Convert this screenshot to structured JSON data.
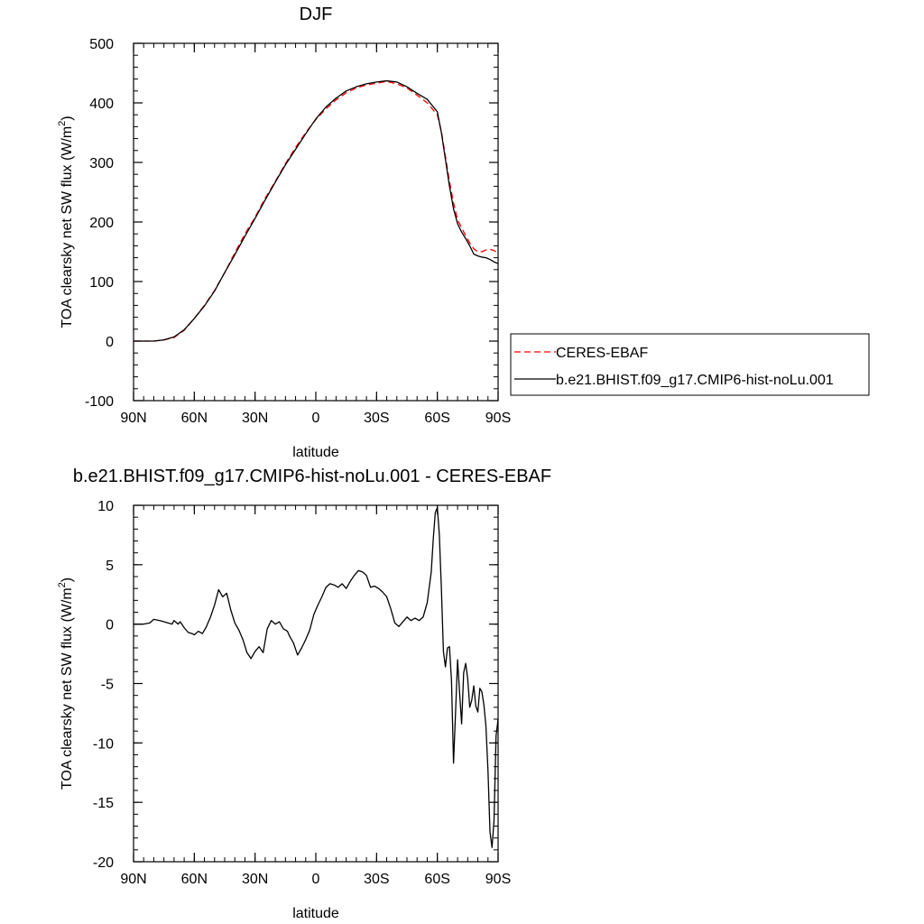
{
  "chart_data": [
    {
      "type": "line",
      "title": "DJF",
      "xlabel": "latitude",
      "ylabel": "TOA clearsky net SW flux (W/m²)",
      "ylabel_parts": [
        "TOA clearsky net SW flux (W/m",
        "2",
        ")"
      ],
      "xlim": [
        -90,
        90
      ],
      "ylim": [
        -100,
        500
      ],
      "x_ticks": [
        -90,
        -60,
        -30,
        0,
        30,
        60,
        90
      ],
      "x_tick_labels": [
        "90N",
        "60N",
        "30N",
        "0",
        "30S",
        "60S",
        "90S"
      ],
      "y_ticks": [
        -100,
        0,
        100,
        200,
        300,
        400,
        500
      ],
      "y_tick_labels": [
        "-100",
        "0",
        "100",
        "200",
        "300",
        "400",
        "500"
      ],
      "grid": false,
      "legend_position": "right",
      "series": [
        {
          "name": "CERES-EBAF",
          "color": "#ff0000",
          "dash": "dashed",
          "x": [
            -90,
            -85,
            -80,
            -75,
            -70,
            -65,
            -60,
            -55,
            -50,
            -45,
            -40,
            -35,
            -30,
            -25,
            -20,
            -15,
            -10,
            -5,
            0,
            5,
            10,
            15,
            20,
            25,
            30,
            35,
            40,
            45,
            50,
            55,
            60,
            62,
            64,
            66,
            68,
            70,
            72,
            74,
            76,
            78,
            80,
            82,
            84,
            86,
            88,
            90
          ],
          "y": [
            0,
            0,
            0,
            2,
            6,
            18,
            38,
            60,
            85,
            115,
            148,
            180,
            208,
            240,
            268,
            298,
            325,
            350,
            372,
            390,
            405,
            417,
            425,
            430,
            433,
            436,
            432,
            425,
            413,
            400,
            380,
            352,
            310,
            268,
            232,
            204,
            190,
            177,
            165,
            155,
            150,
            150,
            153,
            154,
            152,
            148
          ]
        },
        {
          "name": "b.e21.BHIST.f09_g17.CMIP6-hist-noLu.001",
          "color": "#000000",
          "dash": "solid",
          "x": [
            -90,
            -85,
            -80,
            -75,
            -70,
            -65,
            -60,
            -55,
            -50,
            -45,
            -40,
            -35,
            -30,
            -25,
            -20,
            -15,
            -10,
            -5,
            0,
            5,
            10,
            15,
            20,
            25,
            30,
            35,
            40,
            45,
            50,
            55,
            60,
            62,
            64,
            66,
            68,
            70,
            72,
            74,
            76,
            78,
            80,
            82,
            84,
            86,
            88,
            90
          ],
          "y": [
            0,
            0,
            0,
            2,
            7,
            19,
            38,
            59,
            84,
            115,
            145,
            176,
            206,
            237,
            267,
            296,
            322,
            348,
            373,
            393,
            408,
            420,
            427,
            432,
            435,
            437,
            435,
            427,
            416,
            406,
            385,
            350,
            305,
            260,
            222,
            197,
            183,
            172,
            160,
            146,
            143,
            141,
            140,
            137,
            133,
            130
          ]
        }
      ]
    },
    {
      "type": "line",
      "title": "b.e21.BHIST.f09_g17.CMIP6-hist-noLu.001 - CERES-EBAF",
      "xlabel": "latitude",
      "ylabel": "TOA clearsky net SW flux (W/m²)",
      "ylabel_parts": [
        "TOA clearsky net SW flux (W/m",
        "2",
        ")"
      ],
      "xlim": [
        -90,
        90
      ],
      "ylim": [
        -20,
        10
      ],
      "x_ticks": [
        -90,
        -60,
        -30,
        0,
        30,
        60,
        90
      ],
      "x_tick_labels": [
        "90N",
        "60N",
        "30N",
        "0",
        "30S",
        "60S",
        "90S"
      ],
      "y_ticks": [
        -20,
        -15,
        -10,
        -5,
        0,
        5,
        10
      ],
      "y_tick_labels": [
        "-20",
        "-15",
        "-10",
        "-5",
        "0",
        "5",
        "10"
      ],
      "grid": false,
      "series": [
        {
          "color": "#000000",
          "dash": "solid",
          "x": [
            -90,
            -85,
            -82,
            -80,
            -77,
            -75,
            -73,
            -71,
            -70,
            -68,
            -67,
            -65,
            -63,
            -61,
            -60,
            -58,
            -56,
            -54,
            -52,
            -50,
            -48,
            -46,
            -44,
            -42,
            -40,
            -38,
            -36,
            -34,
            -32,
            -30,
            -28,
            -26,
            -24,
            -22,
            -20,
            -18,
            -16,
            -14,
            -13,
            -11,
            -9,
            -7,
            -5,
            -3,
            -1,
            1,
            3,
            5,
            7,
            9,
            11,
            13,
            15,
            17,
            19,
            21,
            23,
            25,
            27,
            29,
            31,
            33,
            35,
            37,
            39,
            41,
            43,
            45,
            47,
            49,
            51,
            53,
            55,
            57,
            58,
            59,
            60,
            61,
            62,
            63,
            64,
            65,
            66,
            67,
            68,
            69,
            70,
            71,
            72,
            73,
            74,
            75,
            76,
            77,
            78,
            79,
            80,
            81,
            82,
            83,
            84,
            85,
            86,
            87,
            88,
            89,
            90
          ],
          "y": [
            0,
            0,
            0.1,
            0.4,
            0.3,
            0.2,
            0.1,
            0,
            0.3,
            0,
            0.2,
            -0.3,
            -0.7,
            -0.8,
            -0.9,
            -0.6,
            -0.8,
            -0.2,
            0.6,
            1.6,
            2.9,
            2.3,
            2.6,
            1.2,
            0.1,
            -0.5,
            -1.3,
            -2.4,
            -2.9,
            -2.3,
            -1.9,
            -2.4,
            -0.4,
            0.3,
            0,
            0.2,
            -0.4,
            -0.6,
            -1,
            -1.6,
            -2.6,
            -2,
            -1.3,
            -0.5,
            0.8,
            1.6,
            2.3,
            3.1,
            3.4,
            3.3,
            3.1,
            3.4,
            3,
            3.6,
            4.1,
            4.5,
            4.4,
            4.1,
            3.1,
            3.2,
            3,
            2.7,
            2.3,
            1.3,
            0.1,
            -0.2,
            0.2,
            0.6,
            0.3,
            0.5,
            0.3,
            0.6,
            1.8,
            4.4,
            7.2,
            9.4,
            9.8,
            7.5,
            3,
            -2.3,
            -3.6,
            -2,
            -1.9,
            -4.8,
            -11.7,
            -7.4,
            -3,
            -5.8,
            -8.4,
            -4.1,
            -3.3,
            -4.6,
            -7,
            -6.4,
            -5.2,
            -6.9,
            -7.4,
            -5.4,
            -5.7,
            -6.8,
            -8.6,
            -12.3,
            -17.5,
            -18.8,
            -16.5,
            -9.4,
            -8
          ]
        }
      ]
    }
  ]
}
